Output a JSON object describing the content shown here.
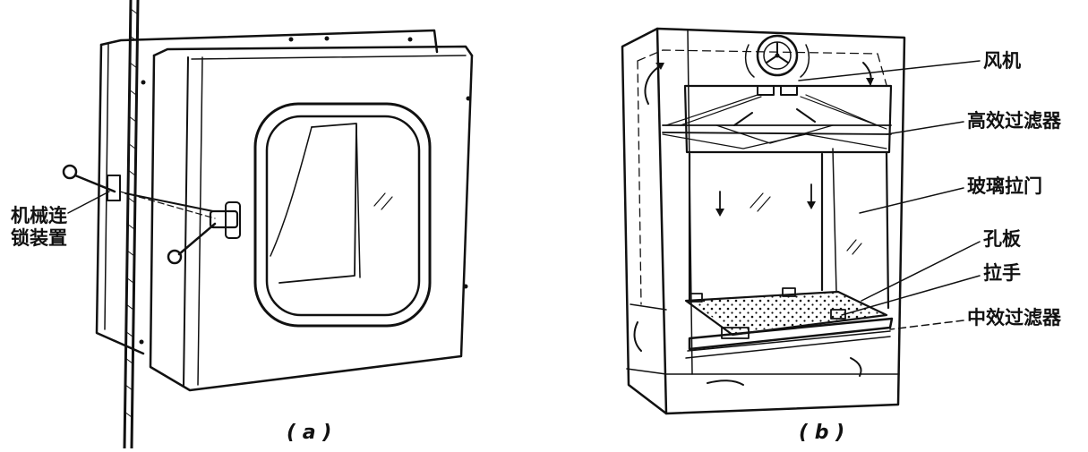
{
  "figure_a": {
    "labels": {
      "interlock_line1": "机械连",
      "interlock_line2": "锁装置"
    },
    "caption": "( a )"
  },
  "figure_b": {
    "labels": {
      "fan": "风机",
      "hepa_filter": "高效过滤器",
      "glass_sliding_door": "玻璃拉门",
      "orifice_plate": "孔板",
      "handle": "拉手",
      "medium_filter": "中效过滤器"
    },
    "caption": "( b )"
  }
}
